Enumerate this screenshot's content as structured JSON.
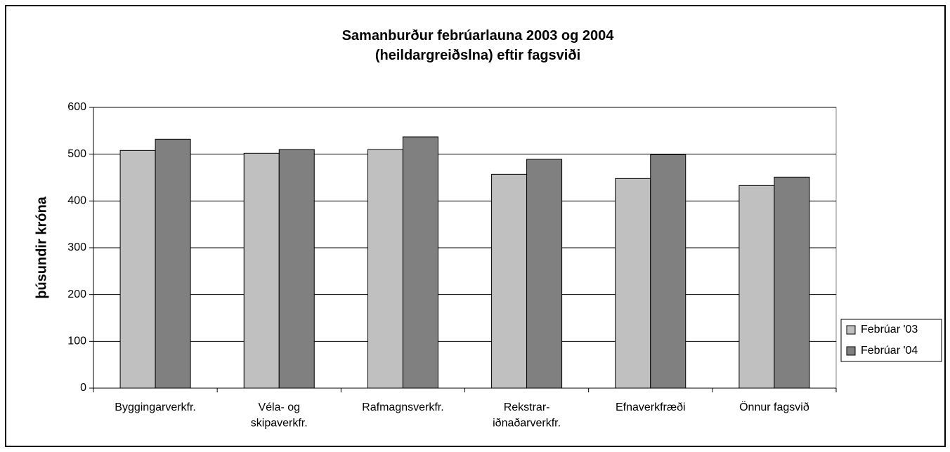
{
  "chart_data": {
    "type": "bar",
    "title": "Samanburður febrúarlauna 2003 og 2004\n(heildargreiðslna) eftir fagsviði",
    "y_label": "þúsundir króna",
    "categories": [
      "Byggingarverkfr.",
      "Véla- og\nskipaverkfr.",
      "Rafmagnsverkfr.",
      "Rekstrar-\niðnaðarverkfr.",
      "Efnaverkfræði",
      "Önnur fagsvið"
    ],
    "series": [
      {
        "name": "Febrúar '03",
        "color": "#c0c0c0",
        "values": [
          508,
          502,
          510,
          457,
          448,
          433
        ]
      },
      {
        "name": "Febrúar '04",
        "color": "#808080",
        "values": [
          532,
          510,
          537,
          489,
          499,
          451
        ]
      }
    ],
    "ylim": [
      0,
      600
    ],
    "yticks": [
      0,
      100,
      200,
      300,
      400,
      500,
      600
    ],
    "grid": true,
    "legend": "right"
  }
}
